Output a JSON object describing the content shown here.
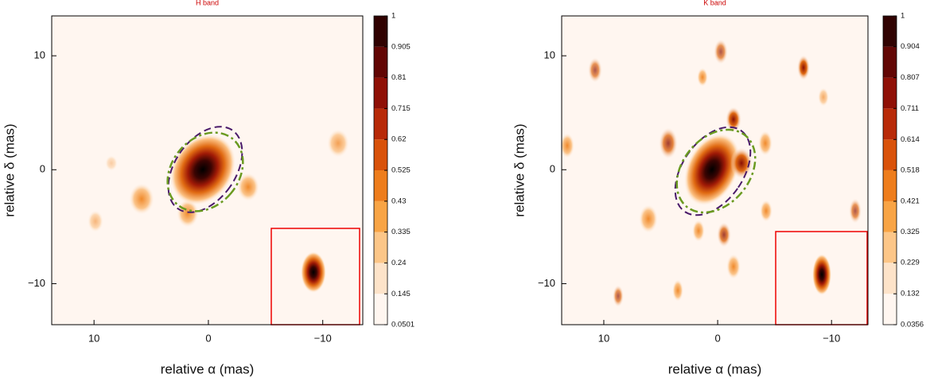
{
  "chart_data": [
    {
      "type": "image",
      "title": "H band",
      "xlabel": "relative α (mas)",
      "ylabel": "relative δ (mas)",
      "xlim": [
        13.7,
        -13.5
      ],
      "ylim": [
        -13.6,
        13.5
      ],
      "xticks": [
        10,
        0,
        {
          "value": -10,
          "label": "−10"
        }
      ],
      "yticks": [
        {
          "value": -10,
          "label": "−10"
        },
        0,
        10
      ],
      "clim": [
        0.0501,
        1
      ],
      "cticks": [
        0.0501,
        0.145,
        0.24,
        0.335,
        0.43,
        0.525,
        0.62,
        0.715,
        0.81,
        0.905,
        1
      ],
      "colors": [
        "#fff6f0",
        "#fde3c9",
        "#fcc688",
        "#f8a445",
        "#ee7d1c",
        "#d9520a",
        "#b82a08",
        "#8f1006",
        "#620604",
        "#300201"
      ]
    },
    {
      "type": "image",
      "title": "K band",
      "xlabel": "relative α (mas)",
      "ylabel": "relative δ (mas)",
      "xlim": [
        13.7,
        -13.2
      ],
      "ylim": [
        -13.6,
        13.5
      ],
      "xticks": [
        10,
        0,
        {
          "value": -10,
          "label": "−10"
        }
      ],
      "yticks": [
        {
          "value": -10,
          "label": "−10"
        },
        0,
        10
      ],
      "clim": [
        0.0356,
        1
      ],
      "cticks": [
        0.0356,
        0.132,
        0.229,
        0.325,
        0.421,
        0.518,
        0.614,
        0.711,
        0.807,
        0.904,
        1
      ],
      "colors": [
        "#fff6f0",
        "#fde3c9",
        "#fcc688",
        "#f8a445",
        "#ee7d1c",
        "#d9520a",
        "#b82a08",
        "#8f1006",
        "#620604",
        "#300201"
      ]
    }
  ]
}
